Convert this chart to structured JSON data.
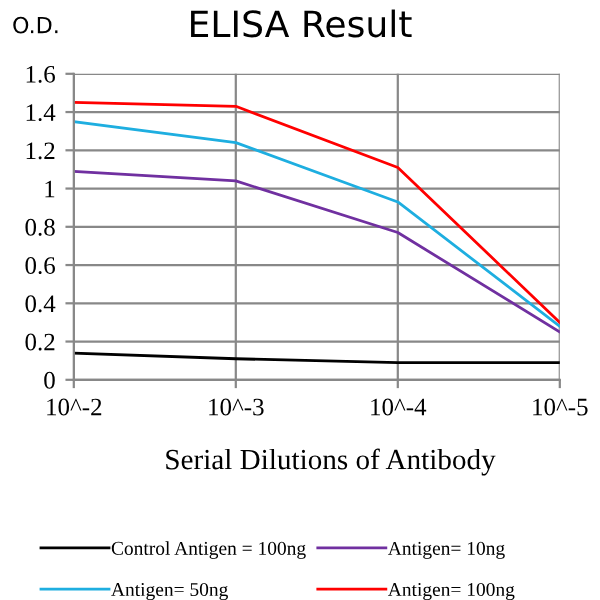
{
  "chart_data": {
    "type": "line",
    "title": "ELISA Result",
    "ylabel": "O.D.",
    "xlabel": "Serial Dilutions of Antibody",
    "categories": [
      "10^-2",
      "10^-3",
      "10^-4",
      "10^-5"
    ],
    "series": [
      {
        "name": "Control Antigen = 100ng",
        "color": "#000000",
        "values": [
          0.14,
          0.11,
          0.09,
          0.09
        ]
      },
      {
        "name": "Antigen= 10ng",
        "color": "#7030a0",
        "values": [
          1.09,
          1.04,
          0.77,
          0.25
        ]
      },
      {
        "name": "Antigen= 50ng",
        "color": "#1eaee0",
        "values": [
          1.35,
          1.24,
          0.93,
          0.28
        ]
      },
      {
        "name": "Antigen= 100ng",
        "color": "#ff0000",
        "values": [
          1.45,
          1.43,
          1.11,
          0.3
        ]
      }
    ],
    "ylim": [
      0,
      1.6
    ],
    "yticks": [
      0,
      0.2,
      0.4,
      0.6,
      0.8,
      1,
      1.2,
      1.4,
      1.6
    ],
    "grid": true,
    "legend": "bottom",
    "marker": "none",
    "line_style": "solid"
  }
}
